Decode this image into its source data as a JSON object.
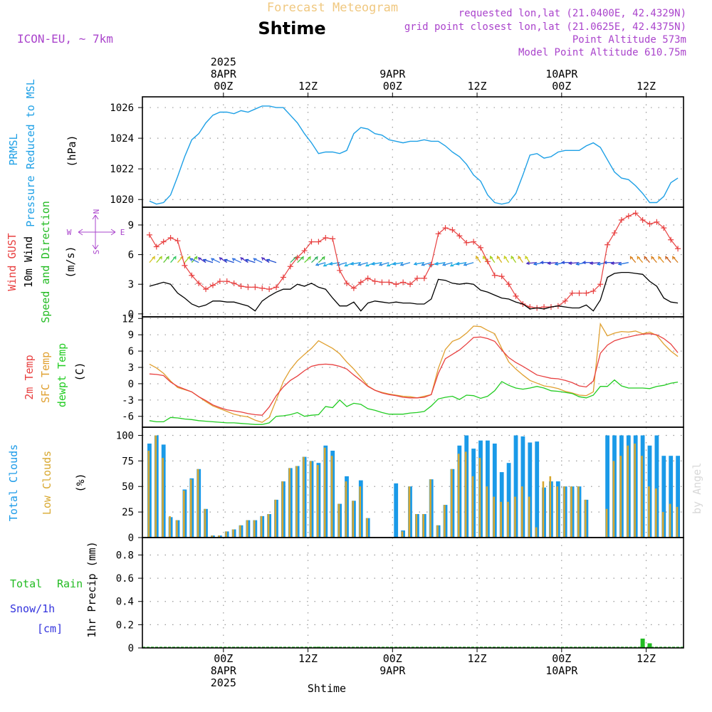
{
  "header": {
    "suptitle": "Forecast Meteogram",
    "place": "Shtime",
    "model": "ICON-EU, ~ 7km",
    "req": "requested lon,lat (21.0400E, 42.4329N)",
    "grid": "grid point closest lon,lat (21.0625E, 42.4375N)",
    "alt": "Point Altitude 573m",
    "model_alt": "Model Point Altitude 610.75m",
    "footer_place": "Shtime",
    "watermark": "by Angel"
  },
  "time_axis": {
    "top_ticks": [
      {
        "t": 0,
        "lines": [
          "2025",
          "8APR",
          "00Z"
        ]
      },
      {
        "t": 12,
        "lines": [
          "12Z"
        ]
      },
      {
        "t": 24,
        "lines": [
          "9APR",
          "00Z"
        ]
      },
      {
        "t": 36,
        "lines": [
          "12Z"
        ]
      },
      {
        "t": 48,
        "lines": [
          "10APR",
          "00Z"
        ]
      },
      {
        "t": 60,
        "lines": [
          "12Z"
        ]
      }
    ],
    "bottom_ticks": [
      {
        "t": 0,
        "lines": [
          "00Z",
          "8APR",
          "2025"
        ]
      },
      {
        "t": 12,
        "lines": [
          "12Z"
        ]
      },
      {
        "t": 24,
        "lines": [
          "00Z",
          "9APR"
        ]
      },
      {
        "t": 36,
        "lines": [
          "12Z"
        ]
      },
      {
        "t": 48,
        "lines": [
          "00Z",
          "10APR"
        ]
      },
      {
        "t": 60,
        "lines": [
          "12Z"
        ]
      }
    ]
  },
  "panels": {
    "pressure": {
      "labels": [
        "PRMSL",
        "Pressure Reduced to MSL"
      ],
      "unit": "(hPa)"
    },
    "wind": {
      "labels": [
        "Wind GUST",
        "10m Wind",
        "Speed and Direction"
      ],
      "unit": "(m/s)",
      "compass": {
        "n": "N",
        "s": "S",
        "e": "E",
        "w": "W"
      }
    },
    "temp": {
      "labels": [
        "2m Temp",
        "SFC Temp",
        "dewpt Temp"
      ],
      "unit": "(C)"
    },
    "cloud": {
      "labels": [
        "Total Clouds",
        "Low Clouds"
      ],
      "unit": "(%)"
    },
    "precip": {
      "labels": [
        "Total",
        "Rain",
        "Snow/1h",
        "[cm]"
      ],
      "unit": "1hr Precip (mm)"
    }
  },
  "colors": {
    "pressure": "#1ea0e6",
    "gust": "#e84040",
    "wind": "#000000",
    "dir": "#22bb22",
    "t2m": "#e84040",
    "sfc": "#e0a030",
    "dew": "#22cc22",
    "total_cloud": "#1a9ae8",
    "low_cloud": "#d8a830",
    "rain": "#22bb22",
    "snow": "#3333dd",
    "meta": "#aa44cc",
    "suptitle": "#f0c880"
  },
  "chart_data": [
    {
      "type": "line",
      "title": "PRMSL",
      "ylabel": "(hPa)",
      "ylim": [
        1019.5,
        1026.7
      ],
      "yticks": [
        1020,
        1022,
        1024,
        1026
      ],
      "grid": true,
      "x": [
        -10.5,
        -9.5,
        -8.5,
        -7.5,
        -6.5,
        -5.5,
        -4.5,
        -3.5,
        -2.5,
        -1.5,
        -0.5,
        0.5,
        1.5,
        2.5,
        3.5,
        4.5,
        5.5,
        6.5,
        7.5,
        8.5,
        9.5,
        10.5,
        11.5,
        12.5,
        13.5,
        14.5,
        15.5,
        16.5,
        17.5,
        18.5,
        19.5,
        20.5,
        21.5,
        22.5,
        23.5,
        24.5,
        25.5,
        26.5,
        27.5,
        28.5,
        29.5,
        30.5,
        31.5,
        32.5,
        33.5,
        34.5,
        35.5,
        36.5,
        37.5,
        38.5,
        39.5,
        40.5,
        41.5,
        42.5,
        43.5,
        44.5,
        45.5,
        46.5,
        47.5,
        48.5,
        49.5,
        50.5,
        51.5,
        52.5,
        53.5,
        54.5,
        55.5,
        56.5,
        57.5,
        58.5,
        59.5,
        60.5,
        61.5,
        62.5,
        63.5,
        64.5
      ],
      "series": [
        {
          "values": [
            1019.9,
            1019.7,
            1019.8,
            1020.3,
            1021.5,
            1022.8,
            1023.9,
            1024.3,
            1025.0,
            1025.5,
            1025.7,
            1025.7,
            1025.6,
            1025.8,
            1025.7,
            1025.9,
            1026.1,
            1026.1,
            1026.0,
            1026.0,
            1025.5,
            1025.0,
            1024.3,
            1023.7,
            1023.0,
            1023.1,
            1023.1,
            1023.0,
            1023.2,
            1024.3,
            1024.7,
            1024.6,
            1024.3,
            1024.2,
            1023.9,
            1023.8,
            1023.7,
            1023.8,
            1023.8,
            1023.9,
            1023.8,
            1023.8,
            1023.5,
            1023.1,
            1022.8,
            1022.3,
            1021.6,
            1021.2,
            1020.3,
            1019.8,
            1019.7,
            1019.8,
            1020.4,
            1021.6,
            1022.9,
            1023.0,
            1022.7,
            1022.8,
            1023.1,
            1023.2,
            1023.2,
            1023.2,
            1023.5,
            1023.7,
            1023.4,
            1022.6,
            1021.8,
            1021.4,
            1021.3,
            1020.9,
            1020.4,
            1019.8,
            1019.8,
            1020.2,
            1021.1,
            1021.4
          ]
        }
      ]
    },
    {
      "type": "line",
      "title": "Wind GUST / 10m Wind Speed and Direction",
      "ylabel": "(m/s)",
      "ylim": [
        -0.3,
        10.8
      ],
      "yticks": [
        0,
        3,
        6,
        9
      ],
      "grid": true,
      "x": [
        -10.5,
        -9.5,
        -8.5,
        -7.5,
        -6.5,
        -5.5,
        -4.5,
        -3.5,
        -2.5,
        -1.5,
        -0.5,
        0.5,
        1.5,
        2.5,
        3.5,
        4.5,
        5.5,
        6.5,
        7.5,
        8.5,
        9.5,
        10.5,
        11.5,
        12.5,
        13.5,
        14.5,
        15.5,
        16.5,
        17.5,
        18.5,
        19.5,
        20.5,
        21.5,
        22.5,
        23.5,
        24.5,
        25.5,
        26.5,
        27.5,
        28.5,
        29.5,
        30.5,
        31.5,
        32.5,
        33.5,
        34.5,
        35.5,
        36.5,
        37.5,
        38.5,
        39.5,
        40.5,
        41.5,
        42.5,
        43.5,
        44.5,
        45.5,
        46.5,
        47.5,
        48.5,
        49.5,
        50.5,
        51.5,
        52.5,
        53.5,
        54.5,
        55.5,
        56.5,
        57.5,
        58.5,
        59.5,
        60.5,
        61.5,
        62.5,
        63.5,
        64.5
      ],
      "series": [
        {
          "name": "Wind GUST",
          "values": [
            8.0,
            6.8,
            7.3,
            7.7,
            7.4,
            4.9,
            3.9,
            3.1,
            2.5,
            2.9,
            3.3,
            3.3,
            3.1,
            2.8,
            2.7,
            2.7,
            2.6,
            2.5,
            2.7,
            3.7,
            4.8,
            5.7,
            6.4,
            7.3,
            7.3,
            7.7,
            7.6,
            4.4,
            3.1,
            2.6,
            3.2,
            3.6,
            3.3,
            3.2,
            3.2,
            3.0,
            3.2,
            3.0,
            3.6,
            3.6,
            5.0,
            8.1,
            8.7,
            8.5,
            7.9,
            7.2,
            7.3,
            6.7,
            5.3,
            3.9,
            3.8,
            3.0,
            1.8,
            1.0,
            0.7,
            0.6,
            0.7,
            0.7,
            0.8,
            1.3,
            2.1,
            2.1,
            2.1,
            2.3,
            3.0,
            7.0,
            8.2,
            9.5,
            9.9,
            10.2,
            9.5,
            9.1,
            9.3,
            8.7,
            7.5,
            6.6
          ]
        },
        {
          "name": "10m Wind",
          "values": [
            2.8,
            3.0,
            3.2,
            3.0,
            2.1,
            1.6,
            1.0,
            0.7,
            0.9,
            1.3,
            1.3,
            1.2,
            1.2,
            1.0,
            0.8,
            0.3,
            1.3,
            1.8,
            2.2,
            2.5,
            2.5,
            3.0,
            2.8,
            3.1,
            2.7,
            2.5,
            1.6,
            0.8,
            0.8,
            1.2,
            0.3,
            1.1,
            1.3,
            1.2,
            1.1,
            1.2,
            1.1,
            1.1,
            1.0,
            1.0,
            1.5,
            3.5,
            3.4,
            3.1,
            3.0,
            3.1,
            3.0,
            2.4,
            2.2,
            1.9,
            1.6,
            1.5,
            1.2,
            1.0,
            0.5,
            0.6,
            0.5,
            0.7,
            0.8,
            0.7,
            0.6,
            0.6,
            0.9,
            0.3,
            1.4,
            3.7,
            4.1,
            4.2,
            4.2,
            4.1,
            4.0,
            3.3,
            2.8,
            1.6,
            1.2,
            1.1
          ]
        }
      ]
    },
    {
      "type": "line",
      "title": "2m Temp / SFC Temp / dewpt Temp",
      "ylabel": "(C)",
      "ylim": [
        -8,
        12.3
      ],
      "yticks": [
        -6,
        -3,
        0,
        3,
        6,
        9,
        12
      ],
      "grid": true,
      "x": [
        -10.5,
        -9.5,
        -8.5,
        -7.5,
        -6.5,
        -5.5,
        -4.5,
        -3.5,
        -2.5,
        -1.5,
        -0.5,
        0.5,
        1.5,
        2.5,
        3.5,
        4.5,
        5.5,
        6.5,
        7.5,
        8.5,
        9.5,
        10.5,
        11.5,
        12.5,
        13.5,
        14.5,
        15.5,
        16.5,
        17.5,
        18.5,
        19.5,
        20.5,
        21.5,
        22.5,
        23.5,
        24.5,
        25.5,
        26.5,
        27.5,
        28.5,
        29.5,
        30.5,
        31.5,
        32.5,
        33.5,
        34.5,
        35.5,
        36.5,
        37.5,
        38.5,
        39.5,
        40.5,
        41.5,
        42.5,
        43.5,
        44.5,
        45.5,
        46.5,
        47.5,
        48.5,
        49.5,
        50.5,
        51.5,
        52.5,
        53.5,
        54.5,
        55.5,
        56.5,
        57.5,
        58.5,
        59.5,
        60.5,
        61.5,
        62.5,
        63.5,
        64.5
      ],
      "series": [
        {
          "name": "2m Temp",
          "values": [
            1.8,
            1.7,
            1.5,
            0.3,
            -0.5,
            -1.0,
            -1.5,
            -2.4,
            -3.1,
            -3.9,
            -4.4,
            -4.8,
            -5.0,
            -5.2,
            -5.5,
            -5.7,
            -5.8,
            -4.3,
            -2.2,
            -0.6,
            0.6,
            1.4,
            2.4,
            3.2,
            3.5,
            3.6,
            3.5,
            3.2,
            2.7,
            1.6,
            0.6,
            -0.5,
            -1.2,
            -1.7,
            -2.0,
            -2.2,
            -2.5,
            -2.6,
            -2.6,
            -2.5,
            -2.0,
            1.9,
            4.6,
            5.4,
            6.2,
            7.3,
            8.5,
            8.6,
            8.3,
            7.8,
            6.2,
            4.8,
            3.9,
            3.2,
            2.4,
            1.6,
            1.3,
            1.0,
            0.9,
            0.6,
            0.2,
            -0.4,
            -0.6,
            0.5,
            5.6,
            7.1,
            7.9,
            8.3,
            8.6,
            8.9,
            9.1,
            9.2,
            9.0,
            8.3,
            7.3,
            5.7
          ]
        },
        {
          "name": "SFC Temp",
          "values": [
            3.6,
            2.9,
            1.9,
            0.5,
            -0.7,
            -1.1,
            -1.5,
            -2.4,
            -3.3,
            -4.1,
            -4.6,
            -5.1,
            -5.6,
            -5.9,
            -6.1,
            -6.7,
            -7.1,
            -6.2,
            -3.0,
            0.4,
            2.6,
            4.2,
            5.4,
            6.5,
            7.9,
            7.2,
            6.5,
            5.5,
            4.0,
            2.7,
            1.2,
            -0.4,
            -1.2,
            -1.6,
            -1.9,
            -2.1,
            -2.3,
            -2.4,
            -2.6,
            -2.3,
            -2.0,
            2.8,
            6.3,
            7.8,
            8.3,
            9.3,
            10.6,
            10.5,
            9.8,
            9.2,
            6.5,
            4.0,
            2.7,
            1.6,
            0.6,
            0.1,
            -0.4,
            -0.6,
            -0.9,
            -1.4,
            -1.7,
            -2.1,
            -2.2,
            -1.5,
            11.0,
            8.8,
            9.3,
            9.6,
            9.5,
            9.7,
            9.2,
            9.5,
            8.9,
            7.3,
            6.0,
            5.0
          ]
        },
        {
          "name": "dewpt Temp",
          "values": [
            -6.8,
            -7.0,
            -7.0,
            -6.2,
            -6.3,
            -6.5,
            -6.6,
            -6.8,
            -6.9,
            -7.0,
            -7.1,
            -7.2,
            -7.2,
            -7.3,
            -7.4,
            -7.5,
            -7.5,
            -7.2,
            -6.0,
            -5.9,
            -5.7,
            -5.3,
            -6.0,
            -5.8,
            -5.7,
            -4.2,
            -4.4,
            -3.0,
            -4.2,
            -3.6,
            -3.8,
            -4.6,
            -4.9,
            -5.3,
            -5.6,
            -5.6,
            -5.6,
            -5.4,
            -5.3,
            -5.1,
            -4.1,
            -2.8,
            -2.5,
            -2.3,
            -2.9,
            -2.1,
            -2.2,
            -2.7,
            -2.3,
            -1.3,
            0.4,
            -0.3,
            -0.8,
            -1.0,
            -0.8,
            -0.5,
            -0.8,
            -1.3,
            -1.4,
            -1.6,
            -1.8,
            -2.4,
            -2.6,
            -2.1,
            -0.5,
            -0.5,
            0.7,
            -0.4,
            -0.8,
            -0.8,
            -0.8,
            -0.9,
            -0.5,
            -0.3,
            0.1,
            0.3
          ]
        }
      ]
    },
    {
      "type": "bar",
      "title": "Total Clouds / Low Clouds",
      "ylabel": "(%)",
      "ylim": [
        0,
        108
      ],
      "yticks": [
        0,
        25,
        50,
        75,
        100
      ],
      "grid": true,
      "x": [
        -10.5,
        -9.5,
        -8.5,
        -7.5,
        -6.5,
        -5.5,
        -4.5,
        -3.5,
        -2.5,
        -1.5,
        -0.5,
        0.5,
        1.5,
        2.5,
        3.5,
        4.5,
        5.5,
        6.5,
        7.5,
        8.5,
        9.5,
        10.5,
        11.5,
        12.5,
        13.5,
        14.5,
        15.5,
        16.5,
        17.5,
        18.5,
        19.5,
        20.5,
        21.5,
        22.5,
        23.5,
        24.5,
        25.5,
        26.5,
        27.5,
        28.5,
        29.5,
        30.5,
        31.5,
        32.5,
        33.5,
        34.5,
        35.5,
        36.5,
        37.5,
        38.5,
        39.5,
        40.5,
        41.5,
        42.5,
        43.5,
        44.5,
        45.5,
        46.5,
        47.5,
        48.5,
        49.5,
        50.5,
        51.5,
        52.5,
        53.5,
        54.5,
        55.5,
        56.5,
        57.5,
        58.5,
        59.5,
        60.5,
        61.5,
        62.5,
        63.5,
        64.5
      ],
      "series": [
        {
          "name": "Total Clouds",
          "values": [
            92,
            100,
            91,
            20,
            17,
            47,
            58,
            67,
            28,
            2,
            2,
            6,
            8,
            12,
            17,
            17,
            21,
            23,
            37,
            55,
            68,
            70,
            79,
            75,
            73,
            90,
            85,
            33,
            60,
            36,
            56,
            19,
            0,
            0,
            0,
            53,
            7,
            50,
            23,
            23,
            57,
            12,
            32,
            67,
            90,
            100,
            87,
            95,
            95,
            92,
            64,
            73,
            100,
            99,
            93,
            94,
            49,
            55,
            55,
            50,
            50,
            50,
            37,
            0,
            0,
            100,
            100,
            100,
            100,
            100,
            100,
            90,
            100,
            80,
            80,
            80
          ]
        },
        {
          "name": "Low Clouds",
          "values": [
            85,
            100,
            78,
            21,
            17,
            46,
            57,
            67,
            28,
            2,
            2,
            6,
            8,
            12,
            17,
            17,
            21,
            23,
            37,
            55,
            68,
            70,
            79,
            75,
            71,
            88,
            80,
            33,
            55,
            36,
            50,
            19,
            0,
            0,
            0,
            0,
            6,
            50,
            23,
            23,
            57,
            12,
            32,
            67,
            82,
            84,
            60,
            78,
            50,
            40,
            35,
            35,
            40,
            50,
            40,
            10,
            55,
            60,
            50,
            50,
            50,
            50,
            37,
            0,
            0,
            28,
            75,
            80,
            90,
            92,
            80,
            50,
            48,
            25,
            33,
            30
          ]
        }
      ]
    },
    {
      "type": "bar",
      "title": "1hr Precip",
      "ylabel": "1hr Precip (mm)",
      "ylim": [
        0,
        0.95
      ],
      "yticks": [
        0,
        0.2,
        0.4,
        0.6,
        0.8
      ],
      "grid": true,
      "x": [
        13.5,
        59.5,
        60.5
      ],
      "series": [
        {
          "name": "Total Rain",
          "values": [
            0.01,
            0.08,
            0.04
          ]
        }
      ]
    }
  ]
}
